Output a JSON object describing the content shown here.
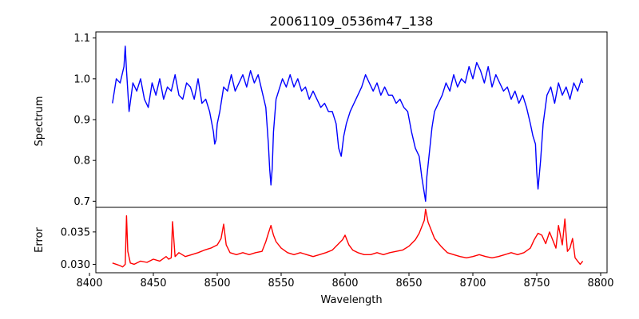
{
  "chart_data": {
    "type": "line",
    "title": "20061109_0536m47_138",
    "xlabel": "Wavelength",
    "xlim": [
      8405,
      8805
    ],
    "xticks": [
      8400,
      8450,
      8500,
      8550,
      8600,
      8650,
      8700,
      8750,
      8800
    ],
    "panels": [
      {
        "name": "spectrum-panel",
        "ylabel": "Spectrum",
        "ylim": [
          0.685,
          1.115
        ],
        "yticks": [
          0.7,
          0.8,
          0.9,
          1.0,
          1.1
        ],
        "ytick_labels": [
          "0.7",
          "0.8",
          "0.9",
          "1.0",
          "1.1"
        ],
        "color": "#0000ff",
        "x": [
          8418,
          8421,
          8424,
          8427,
          8428,
          8429,
          8431,
          8434,
          8437,
          8440,
          8443,
          8446,
          8449,
          8452,
          8455,
          8458,
          8461,
          8464,
          8467,
          8470,
          8473,
          8476,
          8479,
          8482,
          8485,
          8488,
          8491,
          8494,
          8497,
          8498,
          8499,
          8500,
          8502,
          8505,
          8508,
          8511,
          8514,
          8517,
          8520,
          8523,
          8526,
          8529,
          8532,
          8535,
          8538,
          8540,
          8541,
          8542,
          8543,
          8544,
          8546,
          8548,
          8551,
          8554,
          8557,
          8560,
          8563,
          8566,
          8569,
          8572,
          8575,
          8578,
          8581,
          8584,
          8587,
          8590,
          8593,
          8595,
          8597,
          8599,
          8601,
          8604,
          8607,
          8610,
          8613,
          8616,
          8619,
          8622,
          8625,
          8628,
          8631,
          8634,
          8637,
          8640,
          8643,
          8646,
          8649,
          8652,
          8655,
          8658,
          8660,
          8662,
          8663,
          8664,
          8666,
          8668,
          8670,
          8673,
          8676,
          8679,
          8682,
          8685,
          8688,
          8691,
          8694,
          8697,
          8700,
          8703,
          8706,
          8709,
          8712,
          8715,
          8718,
          8721,
          8724,
          8727,
          8730,
          8733,
          8736,
          8739,
          8742,
          8745,
          8747,
          8749,
          8750,
          8751,
          8753,
          8755,
          8758,
          8761,
          8764,
          8767,
          8770,
          8773,
          8776,
          8779,
          8782,
          8785,
          8786
        ],
        "values": [
          0.94,
          1.0,
          0.99,
          1.03,
          1.08,
          1.02,
          0.92,
          0.99,
          0.97,
          1.0,
          0.95,
          0.93,
          0.99,
          0.96,
          1.0,
          0.95,
          0.98,
          0.97,
          1.01,
          0.96,
          0.95,
          0.99,
          0.98,
          0.95,
          1.0,
          0.94,
          0.95,
          0.92,
          0.87,
          0.84,
          0.85,
          0.89,
          0.92,
          0.98,
          0.97,
          1.01,
          0.97,
          0.99,
          1.01,
          0.98,
          1.02,
          0.99,
          1.01,
          0.97,
          0.93,
          0.84,
          0.78,
          0.74,
          0.78,
          0.87,
          0.95,
          0.97,
          1.0,
          0.98,
          1.01,
          0.98,
          1.0,
          0.97,
          0.98,
          0.95,
          0.97,
          0.95,
          0.93,
          0.94,
          0.92,
          0.92,
          0.89,
          0.83,
          0.81,
          0.86,
          0.89,
          0.92,
          0.94,
          0.96,
          0.98,
          1.01,
          0.99,
          0.97,
          0.99,
          0.96,
          0.98,
          0.96,
          0.96,
          0.94,
          0.95,
          0.93,
          0.92,
          0.87,
          0.83,
          0.81,
          0.76,
          0.72,
          0.7,
          0.76,
          0.82,
          0.88,
          0.92,
          0.94,
          0.96,
          0.99,
          0.97,
          1.01,
          0.98,
          1.0,
          0.99,
          1.03,
          1.0,
          1.04,
          1.02,
          0.99,
          1.03,
          0.98,
          1.01,
          0.99,
          0.97,
          0.98,
          0.95,
          0.97,
          0.94,
          0.96,
          0.93,
          0.89,
          0.86,
          0.84,
          0.77,
          0.73,
          0.8,
          0.89,
          0.96,
          0.98,
          0.94,
          0.99,
          0.96,
          0.98,
          0.95,
          0.99,
          0.97,
          1.0,
          0.99
        ]
      },
      {
        "name": "error-panel",
        "ylabel": "Error",
        "ylim": [
          0.0287,
          0.0388
        ],
        "yticks": [
          0.03,
          0.035
        ],
        "ytick_labels": [
          "0.030",
          "0.035"
        ],
        "color": "#ff0000",
        "x": [
          8418,
          8421,
          8424,
          8426,
          8428,
          8429,
          8430,
          8432,
          8435,
          8440,
          8445,
          8450,
          8455,
          8460,
          8462,
          8464,
          8465,
          8467,
          8470,
          8475,
          8480,
          8485,
          8490,
          8495,
          8500,
          8503,
          8505,
          8507,
          8510,
          8515,
          8520,
          8525,
          8530,
          8535,
          8538,
          8540,
          8542,
          8544,
          8546,
          8550,
          8555,
          8560,
          8565,
          8570,
          8575,
          8580,
          8585,
          8590,
          8595,
          8598,
          8600,
          8603,
          8606,
          8610,
          8615,
          8620,
          8625,
          8630,
          8635,
          8640,
          8645,
          8650,
          8655,
          8658,
          8660,
          8662,
          8663,
          8665,
          8667,
          8670,
          8675,
          8680,
          8685,
          8690,
          8695,
          8700,
          8705,
          8710,
          8715,
          8720,
          8725,
          8730,
          8735,
          8740,
          8745,
          8748,
          8751,
          8754,
          8757,
          8760,
          8763,
          8765,
          8767,
          8770,
          8772,
          8774,
          8776,
          8778,
          8780,
          8782,
          8784,
          8786
        ],
        "values": [
          0.0302,
          0.03,
          0.0298,
          0.0296,
          0.03,
          0.0375,
          0.032,
          0.0302,
          0.03,
          0.0305,
          0.0303,
          0.0308,
          0.0305,
          0.0312,
          0.0308,
          0.031,
          0.0366,
          0.0312,
          0.0318,
          0.0312,
          0.0315,
          0.0318,
          0.0322,
          0.0325,
          0.033,
          0.034,
          0.0362,
          0.033,
          0.0318,
          0.0315,
          0.0318,
          0.0315,
          0.0318,
          0.032,
          0.0335,
          0.0348,
          0.036,
          0.0345,
          0.0335,
          0.0325,
          0.0318,
          0.0315,
          0.0318,
          0.0315,
          0.0312,
          0.0315,
          0.0318,
          0.0322,
          0.0332,
          0.0338,
          0.0345,
          0.033,
          0.0322,
          0.0318,
          0.0315,
          0.0315,
          0.0318,
          0.0315,
          0.0318,
          0.032,
          0.0322,
          0.0328,
          0.0338,
          0.0348,
          0.0358,
          0.0368,
          0.0385,
          0.0365,
          0.0355,
          0.034,
          0.0328,
          0.0318,
          0.0315,
          0.0312,
          0.031,
          0.0312,
          0.0315,
          0.0312,
          0.031,
          0.0312,
          0.0315,
          0.0318,
          0.0315,
          0.0318,
          0.0325,
          0.0338,
          0.0348,
          0.0345,
          0.0332,
          0.035,
          0.0335,
          0.0325,
          0.036,
          0.033,
          0.037,
          0.032,
          0.0325,
          0.034,
          0.031,
          0.0305,
          0.03,
          0.0305
        ]
      }
    ]
  }
}
